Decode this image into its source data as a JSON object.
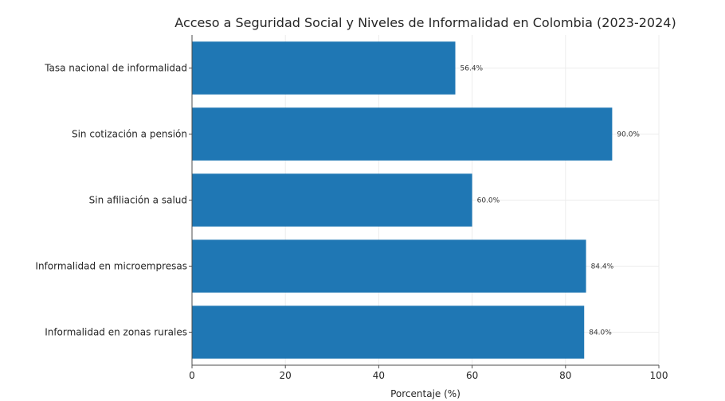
{
  "chart_data": {
    "type": "bar",
    "orientation": "horizontal",
    "title": "Acceso a Seguridad Social y Niveles de Informalidad en Colombia (2023-2024)",
    "xlabel": "Porcentaje (%)",
    "ylabel": "",
    "xlim": [
      0,
      100
    ],
    "xticks": [
      "0",
      "20",
      "40",
      "60",
      "80",
      "100"
    ],
    "grid": true,
    "bar_color": "#1f77b4",
    "categories": [
      "Tasa nacional de informalidad",
      "Sin cotización a pensión",
      "Sin afiliación a salud",
      "Informalidad en microempresas",
      "Informalidad en zonas rurales"
    ],
    "values": [
      56.4,
      90.0,
      60.0,
      84.4,
      84.0
    ],
    "value_labels": [
      "56.4%",
      "90.0%",
      "60.0%",
      "84.4%",
      "84.0%"
    ]
  }
}
